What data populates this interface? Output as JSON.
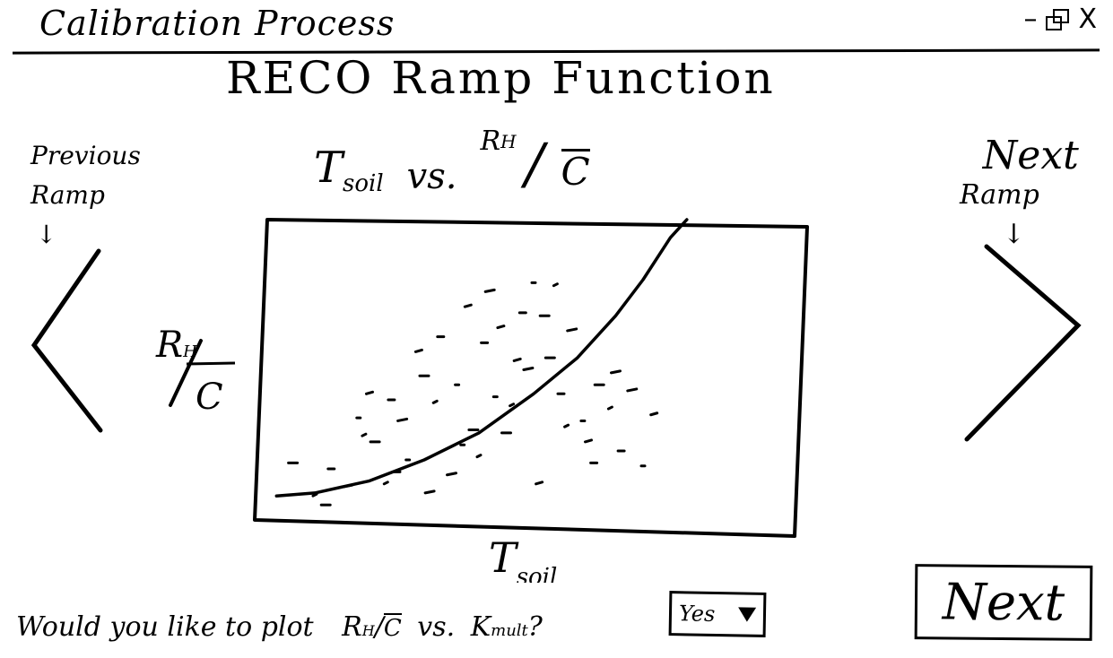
{
  "window": {
    "title": "Calibration Process",
    "controls": {
      "minimize": "–",
      "close": "X"
    }
  },
  "page": {
    "title": "RECO Ramp Function"
  },
  "chart_heading": {
    "x_name": "T",
    "x_sub": "soil",
    "vs": "vs.",
    "y_num": "R",
    "y_num_sub": "H",
    "y_den": "C"
  },
  "nav": {
    "previous": {
      "line1": "Previous",
      "line2": "Ramp",
      "arrow": "↓"
    },
    "next": {
      "line1": "Next",
      "line2": "Ramp",
      "arrow": "↓"
    }
  },
  "chart_data": {
    "type": "scatter",
    "title": "",
    "xlabel": "T",
    "xlabel_sub": "soil",
    "ylabel_num": "R",
    "ylabel_num_sub": "H",
    "ylabel_den": "C",
    "xlim": [
      0,
      10
    ],
    "ylim": [
      0,
      10
    ],
    "grid": false,
    "series": [
      {
        "kind": "points",
        "x": [
          0.6,
          1.0,
          1.3,
          1.6,
          1.8,
          2.0,
          2.1,
          2.3,
          2.4,
          2.6,
          2.7,
          2.9,
          3.0,
          3.2,
          3.3,
          3.5,
          3.6,
          3.8,
          3.9,
          4.0,
          4.1,
          4.2,
          4.3,
          4.4,
          4.5,
          4.6,
          4.8,
          4.9,
          5.0,
          5.1,
          5.3,
          5.4,
          5.5,
          5.7,
          5.9,
          6.0,
          6.2,
          6.4,
          6.6,
          6.8,
          7.0,
          7.2,
          1.2,
          1.9,
          2.5,
          3.1,
          3.7,
          4.7,
          5.2,
          5.6,
          6.1,
          6.5
        ],
        "y": [
          1.9,
          0.8,
          1.7,
          1.1,
          3.4,
          4.2,
          2.6,
          1.2,
          4.0,
          3.3,
          2.0,
          5.6,
          4.8,
          3.9,
          6.1,
          1.5,
          4.5,
          7.1,
          3.0,
          2.1,
          5.9,
          7.6,
          4.1,
          6.4,
          2.9,
          3.8,
          6.9,
          5.0,
          7.9,
          1.2,
          5.4,
          7.8,
          4.2,
          6.3,
          3.3,
          2.6,
          4.5,
          3.7,
          2.3,
          4.3,
          1.8,
          3.5,
          0.5,
          2.8,
          1.6,
          0.9,
          2.5,
          5.3,
          6.8,
          3.1,
          1.9,
          4.9
        ]
      },
      {
        "kind": "fit-curve",
        "x": [
          0.3,
          1.0,
          2.0,
          3.0,
          4.0,
          5.0,
          5.8,
          6.5,
          7.0,
          7.5,
          7.8
        ],
        "y": [
          0.8,
          0.9,
          1.3,
          2.0,
          2.9,
          4.2,
          5.4,
          6.8,
          8.0,
          9.4,
          10.0
        ]
      }
    ]
  },
  "question": {
    "text_before": "Would you like to plot",
    "y_num": "R",
    "y_num_sub": "H",
    "y_den": "C",
    "vs": "vs.",
    "k": "K",
    "k_sub": "mult",
    "qmark": "?"
  },
  "dropdown": {
    "selected": "Yes"
  },
  "next_button": {
    "label": "Next"
  }
}
